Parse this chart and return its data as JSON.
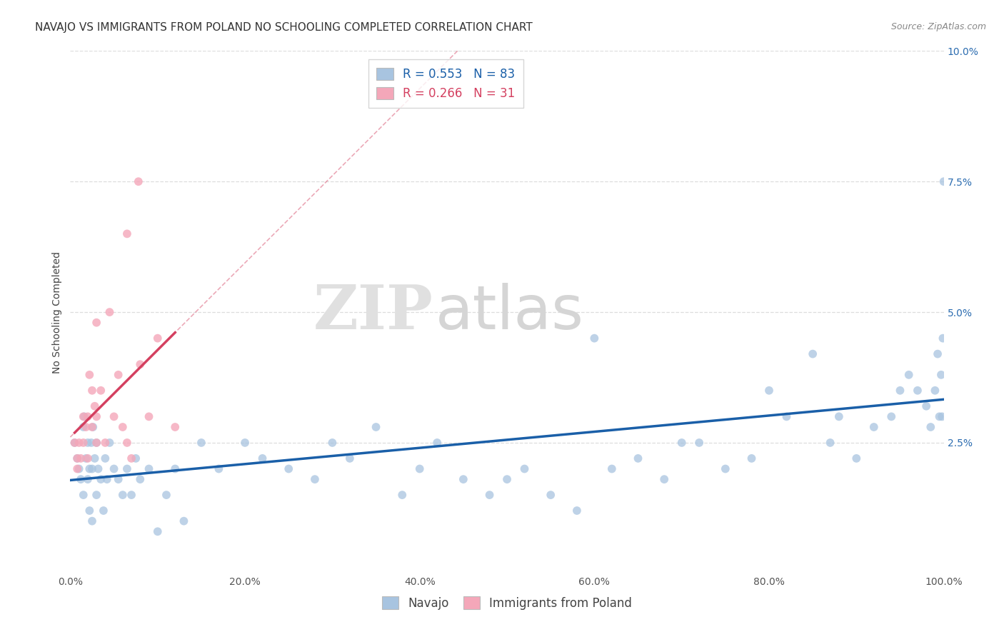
{
  "title": "NAVAJO VS IMMIGRANTS FROM POLAND NO SCHOOLING COMPLETED CORRELATION CHART",
  "source": "Source: ZipAtlas.com",
  "ylabel": "No Schooling Completed",
  "xlim": [
    0,
    1.0
  ],
  "ylim": [
    0,
    0.1
  ],
  "navajo_color": "#a8c4e0",
  "poland_color": "#f4a7b9",
  "navajo_line_color": "#1a5fa8",
  "poland_line_color": "#d44060",
  "navajo_R": 0.553,
  "navajo_N": 83,
  "poland_R": 0.266,
  "poland_N": 31,
  "legend_label_navajo": "Navajo",
  "legend_label_poland": "Immigrants from Poland",
  "background_color": "#ffffff",
  "grid_color": "#dddddd",
  "watermark_zip": "ZIP",
  "watermark_atlas": "atlas",
  "title_fontsize": 11,
  "axis_label_fontsize": 10,
  "tick_fontsize": 10,
  "legend_fontsize": 12
}
